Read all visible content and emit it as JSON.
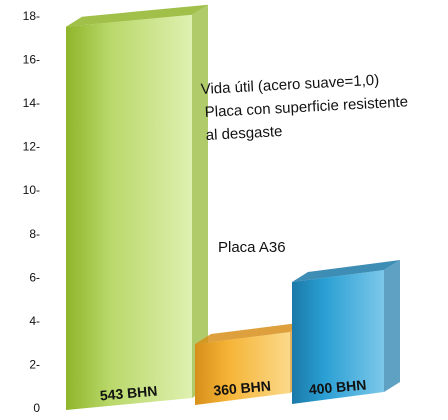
{
  "chart_data": {
    "type": "bar",
    "categories": [
      "543 BHN",
      "360 BHN",
      "400 BHN"
    ],
    "values": [
      17.6,
      2.8,
      5.6
    ],
    "colors": {
      "543 BHN": [
        "#8fb52a",
        "#b9d86a",
        "#dff0b0"
      ],
      "360 BHN": [
        "#d78f1a",
        "#f5b436",
        "#fbd98a"
      ],
      "400 BHN": [
        "#1b79a8",
        "#2a9fd3",
        "#7cc8ea"
      ]
    },
    "yticks": [
      "0",
      "2-",
      "4-",
      "6-",
      "8-",
      "10-",
      "12-",
      "14-",
      "16-",
      "18-"
    ],
    "ylim": [
      0,
      18
    ],
    "grid": false,
    "legend": "none",
    "annotations": [
      "Vida útil (acero suave=1,0)",
      "Placa con superficie resistente",
      "al desgaste",
      "Placa A36"
    ]
  }
}
